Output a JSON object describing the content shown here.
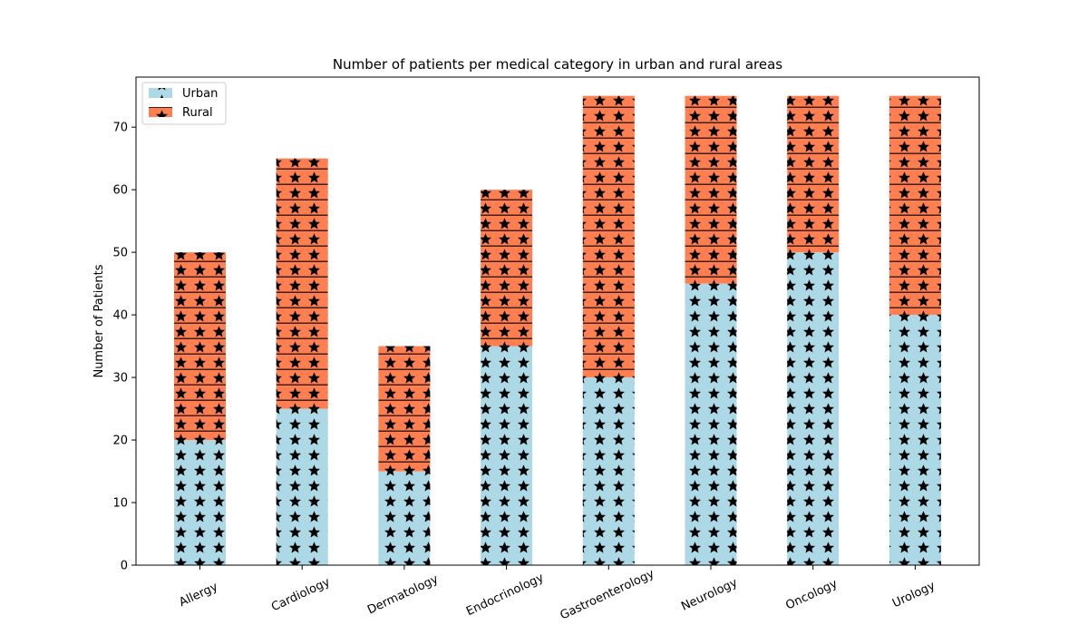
{
  "chart_data": {
    "type": "bar",
    "stacked": true,
    "title": "Number of patients per medical category in urban and rural areas",
    "xlabel": "",
    "ylabel": "Number of Patients",
    "categories": [
      "Allergy",
      "Cardiology",
      "Dermatology",
      "Endocrinology",
      "Gastroenterology",
      "Neurology",
      "Oncology",
      "Urology"
    ],
    "series": [
      {
        "name": "Urban",
        "values": [
          20,
          25,
          15,
          35,
          30,
          45,
          50,
          40
        ],
        "color": "#add8e6",
        "hatch": "stars"
      },
      {
        "name": "Rural",
        "values": [
          30,
          40,
          20,
          25,
          45,
          30,
          25,
          35
        ],
        "color": "#ff7f50",
        "hatch": "stars-and-horizontal-lines"
      }
    ],
    "ylim": [
      0,
      78
    ],
    "yticks": [
      0,
      10,
      20,
      30,
      40,
      50,
      60,
      70
    ],
    "grid": false,
    "legend_position": "top-left",
    "xtick_rotation": "rotated"
  }
}
